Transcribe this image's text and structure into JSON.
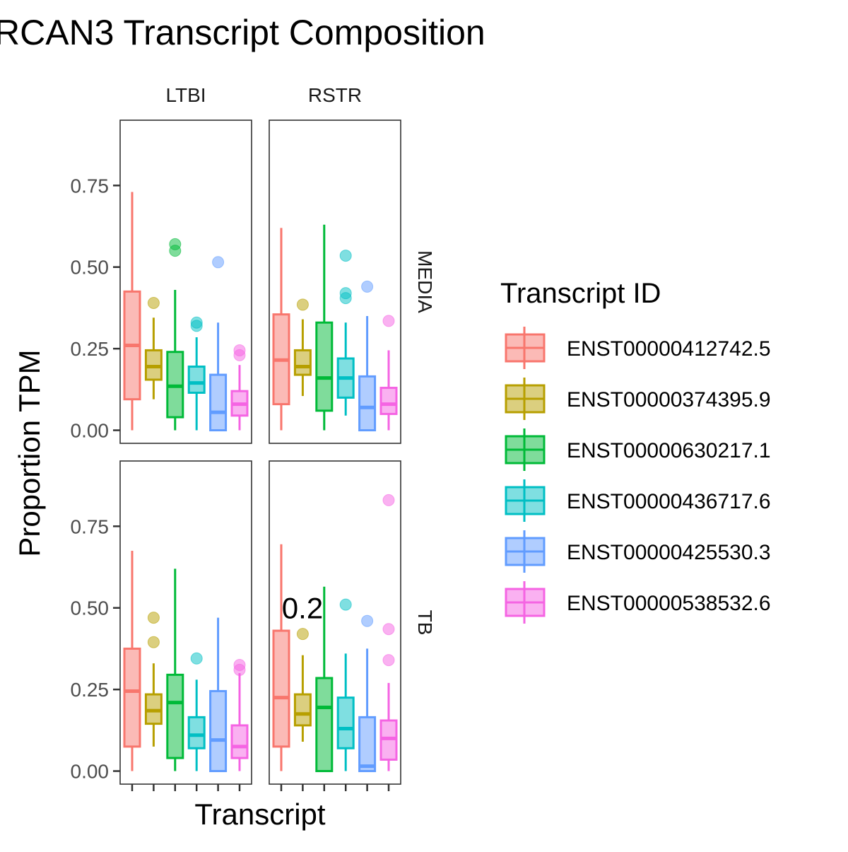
{
  "chart_data": {
    "type": "boxplot",
    "title": "RCAN3 Transcript Composition",
    "xlabel": "Transcript",
    "ylabel": "Proportion TPM",
    "ylim": [
      -0.04,
      0.95
    ],
    "y_ticks": [
      "0.00",
      "0.25",
      "0.50",
      "0.75"
    ],
    "grid": false,
    "legend": {
      "title": "Transcript ID",
      "placement": "right"
    },
    "facet_cols": [
      "LTBI",
      "RSTR"
    ],
    "facet_rows": [
      "MEDIA",
      "TB"
    ],
    "annotation": {
      "text": "0.2",
      "panel": "RSTR-TB"
    },
    "series": [
      {
        "name": "ENST00000412742.5",
        "color": "#F8766D"
      },
      {
        "name": "ENST00000374395.9",
        "color": "#B79F00"
      },
      {
        "name": "ENST00000630217.1",
        "color": "#00BA38"
      },
      {
        "name": "ENST00000436717.6",
        "color": "#00BFC4"
      },
      {
        "name": "ENST00000425530.3",
        "color": "#619CFF"
      },
      {
        "name": "ENST00000538532.6",
        "color": "#F564E3"
      }
    ],
    "panels": [
      {
        "col": "LTBI",
        "row": "MEDIA",
        "boxes": [
          {
            "min": 0.0,
            "q1": 0.095,
            "median": 0.26,
            "q3": 0.425,
            "max": 0.73,
            "outliers": []
          },
          {
            "min": 0.095,
            "q1": 0.155,
            "median": 0.195,
            "q3": 0.245,
            "max": 0.345,
            "outliers": [
              0.39
            ]
          },
          {
            "min": 0.0,
            "q1": 0.04,
            "median": 0.135,
            "q3": 0.24,
            "max": 0.43,
            "outliers": [
              0.55,
              0.57
            ]
          },
          {
            "min": 0.0,
            "q1": 0.115,
            "median": 0.145,
            "q3": 0.195,
            "max": 0.285,
            "outliers": [
              0.32,
              0.33
            ]
          },
          {
            "min": 0.0,
            "q1": 0.0,
            "median": 0.055,
            "q3": 0.17,
            "max": 0.33,
            "outliers": [
              0.515
            ]
          },
          {
            "min": 0.0,
            "q1": 0.045,
            "median": 0.08,
            "q3": 0.12,
            "max": 0.2,
            "outliers": [
              0.23,
              0.245
            ]
          }
        ]
      },
      {
        "col": "RSTR",
        "row": "MEDIA",
        "boxes": [
          {
            "min": 0.0,
            "q1": 0.08,
            "median": 0.215,
            "q3": 0.355,
            "max": 0.62,
            "outliers": []
          },
          {
            "min": 0.105,
            "q1": 0.17,
            "median": 0.195,
            "q3": 0.245,
            "max": 0.34,
            "outliers": [
              0.385
            ]
          },
          {
            "min": 0.0,
            "q1": 0.06,
            "median": 0.16,
            "q3": 0.33,
            "max": 0.63,
            "outliers": []
          },
          {
            "min": 0.045,
            "q1": 0.1,
            "median": 0.16,
            "q3": 0.22,
            "max": 0.33,
            "outliers": [
              0.405,
              0.42,
              0.535
            ]
          },
          {
            "min": 0.0,
            "q1": 0.0,
            "median": 0.07,
            "q3": 0.165,
            "max": 0.35,
            "outliers": [
              0.44
            ]
          },
          {
            "min": 0.0,
            "q1": 0.05,
            "median": 0.08,
            "q3": 0.13,
            "max": 0.245,
            "outliers": [
              0.335
            ]
          }
        ]
      },
      {
        "col": "LTBI",
        "row": "TB",
        "boxes": [
          {
            "min": 0.0,
            "q1": 0.075,
            "median": 0.245,
            "q3": 0.375,
            "max": 0.675,
            "outliers": []
          },
          {
            "min": 0.075,
            "q1": 0.145,
            "median": 0.185,
            "q3": 0.235,
            "max": 0.33,
            "outliers": [
              0.395,
              0.47
            ]
          },
          {
            "min": 0.0,
            "q1": 0.04,
            "median": 0.21,
            "q3": 0.295,
            "max": 0.62,
            "outliers": []
          },
          {
            "min": 0.0,
            "q1": 0.07,
            "median": 0.11,
            "q3": 0.165,
            "max": 0.28,
            "outliers": [
              0.345
            ]
          },
          {
            "min": 0.0,
            "q1": 0.0,
            "median": 0.095,
            "q3": 0.245,
            "max": 0.47,
            "outliers": []
          },
          {
            "min": 0.0,
            "q1": 0.04,
            "median": 0.075,
            "q3": 0.14,
            "max": 0.3,
            "outliers": [
              0.31,
              0.325
            ]
          }
        ]
      },
      {
        "col": "RSTR",
        "row": "TB",
        "boxes": [
          {
            "min": 0.0,
            "q1": 0.075,
            "median": 0.225,
            "q3": 0.43,
            "max": 0.695,
            "outliers": []
          },
          {
            "min": 0.09,
            "q1": 0.14,
            "median": 0.175,
            "q3": 0.235,
            "max": 0.355,
            "outliers": [
              0.42
            ]
          },
          {
            "min": 0.0,
            "q1": 0.0,
            "median": 0.195,
            "q3": 0.285,
            "max": 0.565,
            "outliers": []
          },
          {
            "min": 0.0,
            "q1": 0.07,
            "median": 0.13,
            "q3": 0.225,
            "max": 0.36,
            "outliers": [
              0.51
            ]
          },
          {
            "min": 0.0,
            "q1": 0.0,
            "median": 0.015,
            "q3": 0.165,
            "max": 0.375,
            "outliers": [
              0.46
            ]
          },
          {
            "min": 0.0,
            "q1": 0.035,
            "median": 0.1,
            "q3": 0.155,
            "max": 0.27,
            "outliers": [
              0.34,
              0.435,
              0.83
            ]
          }
        ]
      }
    ]
  }
}
